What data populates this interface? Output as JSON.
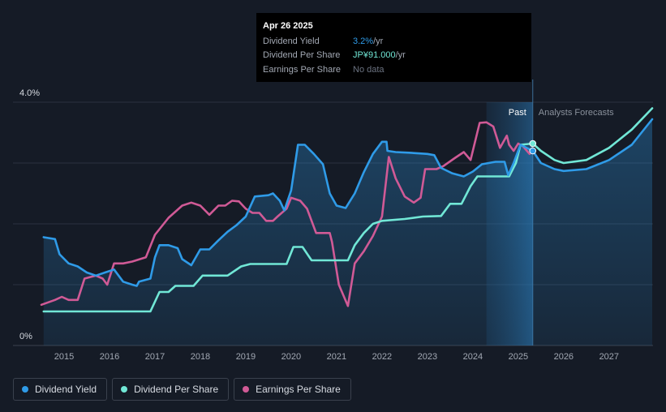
{
  "chart_data": {
    "type": "line",
    "y_axis": {
      "top_label": "4.0%",
      "bottom_label": "0%",
      "ylim": [
        0,
        4.0
      ],
      "grid": true
    },
    "x_ticks": [
      "2015",
      "2016",
      "2017",
      "2018",
      "2019",
      "2020",
      "2021",
      "2022",
      "2023",
      "2024",
      "2025",
      "2026",
      "2027"
    ],
    "xlim": [
      2014.5,
      2027.95
    ],
    "sections": {
      "past": "Past",
      "forecast": "Analysts Forecasts",
      "past_band": [
        2024.3,
        2025.32
      ]
    },
    "series": [
      {
        "name": "Dividend Yield",
        "color": "#2f9be8",
        "fill": true,
        "points": [
          [
            2014.55,
            1.78
          ],
          [
            2014.8,
            1.75
          ],
          [
            2014.9,
            1.5
          ],
          [
            2015.1,
            1.35
          ],
          [
            2015.3,
            1.3
          ],
          [
            2015.5,
            1.2
          ],
          [
            2015.7,
            1.15
          ],
          [
            2015.9,
            1.2
          ],
          [
            2016.1,
            1.25
          ],
          [
            2016.3,
            1.05
          ],
          [
            2016.5,
            1.0
          ],
          [
            2016.6,
            0.98
          ],
          [
            2016.65,
            1.05
          ],
          [
            2016.9,
            1.1
          ],
          [
            2017.0,
            1.45
          ],
          [
            2017.1,
            1.65
          ],
          [
            2017.3,
            1.65
          ],
          [
            2017.5,
            1.6
          ],
          [
            2017.6,
            1.42
          ],
          [
            2017.8,
            1.32
          ],
          [
            2018.0,
            1.58
          ],
          [
            2018.2,
            1.58
          ],
          [
            2018.4,
            1.73
          ],
          [
            2018.6,
            1.87
          ],
          [
            2018.8,
            1.98
          ],
          [
            2019.0,
            2.12
          ],
          [
            2019.2,
            2.45
          ],
          [
            2019.5,
            2.47
          ],
          [
            2019.6,
            2.5
          ],
          [
            2019.75,
            2.38
          ],
          [
            2019.85,
            2.22
          ],
          [
            2020.0,
            2.55
          ],
          [
            2020.15,
            3.3
          ],
          [
            2020.3,
            3.3
          ],
          [
            2020.5,
            3.15
          ],
          [
            2020.7,
            2.98
          ],
          [
            2020.85,
            2.5
          ],
          [
            2021.0,
            2.3
          ],
          [
            2021.2,
            2.26
          ],
          [
            2021.4,
            2.5
          ],
          [
            2021.6,
            2.85
          ],
          [
            2021.8,
            3.15
          ],
          [
            2022.0,
            3.35
          ],
          [
            2022.1,
            3.35
          ],
          [
            2022.12,
            3.2
          ],
          [
            2022.3,
            3.18
          ],
          [
            2022.6,
            3.17
          ],
          [
            2023.0,
            3.15
          ],
          [
            2023.15,
            3.13
          ],
          [
            2023.3,
            2.92
          ],
          [
            2023.55,
            2.83
          ],
          [
            2023.8,
            2.78
          ],
          [
            2024.0,
            2.86
          ],
          [
            2024.2,
            2.98
          ],
          [
            2024.5,
            3.02
          ],
          [
            2024.7,
            3.02
          ],
          [
            2024.78,
            2.8
          ],
          [
            2024.9,
            3.0
          ],
          [
            2025.05,
            3.3
          ],
          [
            2025.32,
            3.2
          ],
          [
            2025.5,
            3.0
          ],
          [
            2025.8,
            2.9
          ],
          [
            2026.0,
            2.87
          ],
          [
            2026.5,
            2.9
          ],
          [
            2027.0,
            3.05
          ],
          [
            2027.5,
            3.3
          ],
          [
            2027.95,
            3.72
          ]
        ]
      },
      {
        "name": "Dividend Per Share",
        "color": "#71e7d6",
        "fill": false,
        "points": [
          [
            2014.55,
            0.56
          ],
          [
            2016.9,
            0.56
          ],
          [
            2017.1,
            0.88
          ],
          [
            2017.3,
            0.88
          ],
          [
            2017.45,
            0.98
          ],
          [
            2017.85,
            0.98
          ],
          [
            2018.05,
            1.15
          ],
          [
            2018.6,
            1.15
          ],
          [
            2018.9,
            1.3
          ],
          [
            2019.1,
            1.34
          ],
          [
            2019.9,
            1.34
          ],
          [
            2020.05,
            1.62
          ],
          [
            2020.25,
            1.62
          ],
          [
            2020.45,
            1.4
          ],
          [
            2021.25,
            1.4
          ],
          [
            2021.4,
            1.65
          ],
          [
            2021.6,
            1.85
          ],
          [
            2021.8,
            2.0
          ],
          [
            2022.0,
            2.05
          ],
          [
            2022.5,
            2.08
          ],
          [
            2022.9,
            2.12
          ],
          [
            2023.3,
            2.13
          ],
          [
            2023.5,
            2.33
          ],
          [
            2023.75,
            2.33
          ],
          [
            2023.95,
            2.62
          ],
          [
            2024.1,
            2.78
          ],
          [
            2024.8,
            2.78
          ],
          [
            2024.95,
            3.0
          ],
          [
            2025.05,
            3.3
          ],
          [
            2025.32,
            3.32
          ],
          [
            2025.5,
            3.2
          ],
          [
            2025.8,
            3.05
          ],
          [
            2026.0,
            3.0
          ],
          [
            2026.5,
            3.05
          ],
          [
            2027.0,
            3.25
          ],
          [
            2027.5,
            3.55
          ],
          [
            2027.95,
            3.9
          ]
        ]
      },
      {
        "name": "Earnings Per Share",
        "color": "#d05a96",
        "fill": false,
        "points": [
          [
            2014.5,
            0.67
          ],
          [
            2014.8,
            0.75
          ],
          [
            2014.95,
            0.8
          ],
          [
            2015.1,
            0.75
          ],
          [
            2015.3,
            0.75
          ],
          [
            2015.45,
            1.1
          ],
          [
            2015.7,
            1.15
          ],
          [
            2015.85,
            1.1
          ],
          [
            2015.95,
            1.0
          ],
          [
            2016.1,
            1.35
          ],
          [
            2016.3,
            1.35
          ],
          [
            2016.5,
            1.38
          ],
          [
            2016.8,
            1.45
          ],
          [
            2017.0,
            1.82
          ],
          [
            2017.3,
            2.1
          ],
          [
            2017.6,
            2.3
          ],
          [
            2017.8,
            2.35
          ],
          [
            2018.0,
            2.3
          ],
          [
            2018.2,
            2.15
          ],
          [
            2018.4,
            2.3
          ],
          [
            2018.55,
            2.3
          ],
          [
            2018.7,
            2.38
          ],
          [
            2018.85,
            2.37
          ],
          [
            2019.0,
            2.25
          ],
          [
            2019.15,
            2.18
          ],
          [
            2019.3,
            2.18
          ],
          [
            2019.45,
            2.05
          ],
          [
            2019.6,
            2.05
          ],
          [
            2019.7,
            2.12
          ],
          [
            2019.9,
            2.25
          ],
          [
            2020.0,
            2.43
          ],
          [
            2020.2,
            2.38
          ],
          [
            2020.35,
            2.25
          ],
          [
            2020.55,
            1.85
          ],
          [
            2020.7,
            1.85
          ],
          [
            2020.85,
            1.85
          ],
          [
            2020.9,
            1.7
          ],
          [
            2021.05,
            1.0
          ],
          [
            2021.25,
            0.65
          ],
          [
            2021.4,
            1.35
          ],
          [
            2021.6,
            1.55
          ],
          [
            2021.8,
            1.8
          ],
          [
            2022.0,
            2.12
          ],
          [
            2022.15,
            3.1
          ],
          [
            2022.3,
            2.75
          ],
          [
            2022.5,
            2.45
          ],
          [
            2022.7,
            2.35
          ],
          [
            2022.85,
            2.43
          ],
          [
            2022.95,
            2.9
          ],
          [
            2023.2,
            2.9
          ],
          [
            2023.35,
            2.95
          ],
          [
            2023.6,
            3.08
          ],
          [
            2023.8,
            3.18
          ],
          [
            2023.95,
            3.05
          ],
          [
            2024.15,
            3.66
          ],
          [
            2024.3,
            3.67
          ],
          [
            2024.45,
            3.6
          ],
          [
            2024.6,
            3.25
          ],
          [
            2024.75,
            3.45
          ],
          [
            2024.8,
            3.3
          ],
          [
            2024.9,
            3.2
          ],
          [
            2025.0,
            3.32
          ],
          [
            2025.1,
            3.28
          ],
          [
            2025.25,
            3.15
          ]
        ]
      }
    ],
    "markers": [
      {
        "series": "Dividend Per Share",
        "x": 2025.32,
        "y": 3.32
      },
      {
        "series": "Dividend Yield",
        "x": 2025.32,
        "y": 3.2
      }
    ]
  },
  "tooltip": {
    "date": "Apr 26 2025",
    "rows": [
      {
        "label": "Dividend Yield",
        "value": "3.2%",
        "unit": " /yr"
      },
      {
        "label": "Dividend Per Share",
        "value": "JP¥91.000",
        "unit": " /yr"
      },
      {
        "label": "Earnings Per Share",
        "value": "No data"
      }
    ]
  },
  "legend": [
    {
      "label": "Dividend Yield",
      "color": "#2f9be8"
    },
    {
      "label": "Dividend Per Share",
      "color": "#71e7d6"
    },
    {
      "label": "Earnings Per Share",
      "color": "#d05a96"
    }
  ]
}
